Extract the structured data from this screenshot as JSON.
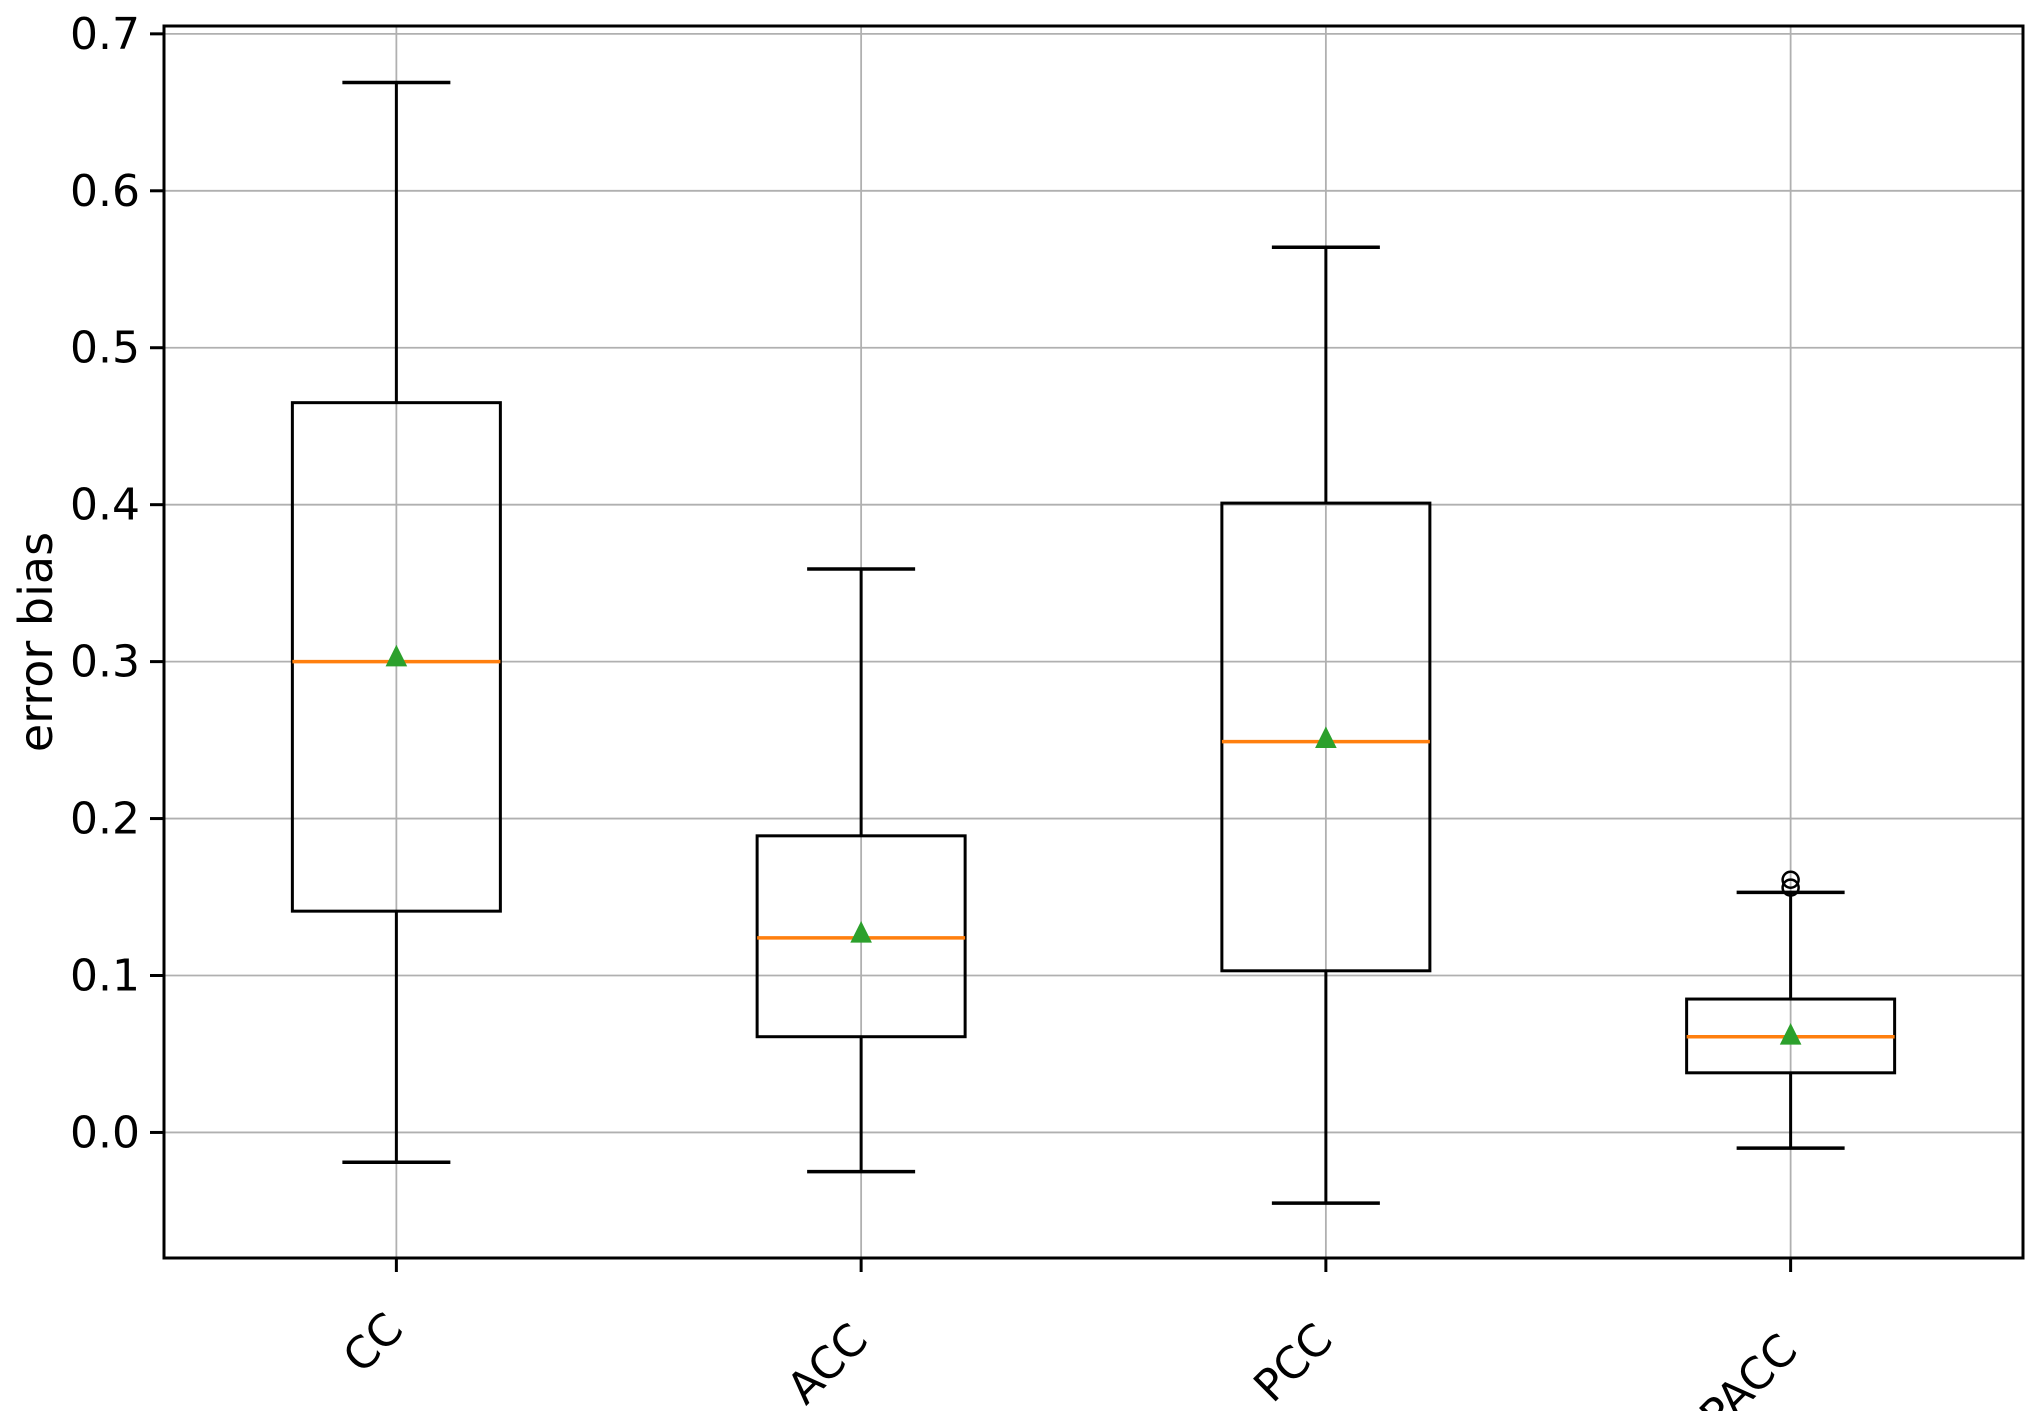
{
  "figure": {
    "background": "#ffffff"
  },
  "chart_data": {
    "type": "box",
    "title": "",
    "xlabel": "",
    "ylabel": "error bias",
    "categories": [
      "CC",
      "ACC",
      "PCC",
      "PACC"
    ],
    "ylim": [
      -0.08,
      0.705
    ],
    "ytick_values": [
      0.0,
      0.1,
      0.2,
      0.3,
      0.4,
      0.5,
      0.6,
      0.7
    ],
    "ytick_labels": [
      "0.0",
      "0.1",
      "0.2",
      "0.3",
      "0.4",
      "0.5",
      "0.6",
      "0.7"
    ],
    "grid": true,
    "legend_position": "none",
    "x_tick_rotation_deg": 45,
    "series": [
      {
        "name": "CC",
        "whisker_low": -0.019,
        "q1": 0.141,
        "median": 0.3,
        "q3": 0.465,
        "whisker_high": 0.669,
        "mean": 0.303,
        "outliers": []
      },
      {
        "name": "ACC",
        "whisker_low": -0.025,
        "q1": 0.061,
        "median": 0.124,
        "q3": 0.189,
        "whisker_high": 0.359,
        "mean": 0.127,
        "outliers": []
      },
      {
        "name": "PCC",
        "whisker_low": -0.045,
        "q1": 0.103,
        "median": 0.249,
        "q3": 0.401,
        "whisker_high": 0.564,
        "mean": 0.251,
        "outliers": []
      },
      {
        "name": "PACC",
        "whisker_low": -0.01,
        "q1": 0.038,
        "median": 0.061,
        "q3": 0.085,
        "whisker_high": 0.153,
        "mean": 0.062,
        "outliers": [
          0.156,
          0.161
        ]
      }
    ],
    "colors": {
      "box_line": "#000000",
      "median": "#ff7f0e",
      "mean_marker": "#2ca02c",
      "grid": "#b0b0b0",
      "spine": "#000000",
      "background": "#ffffff"
    }
  }
}
